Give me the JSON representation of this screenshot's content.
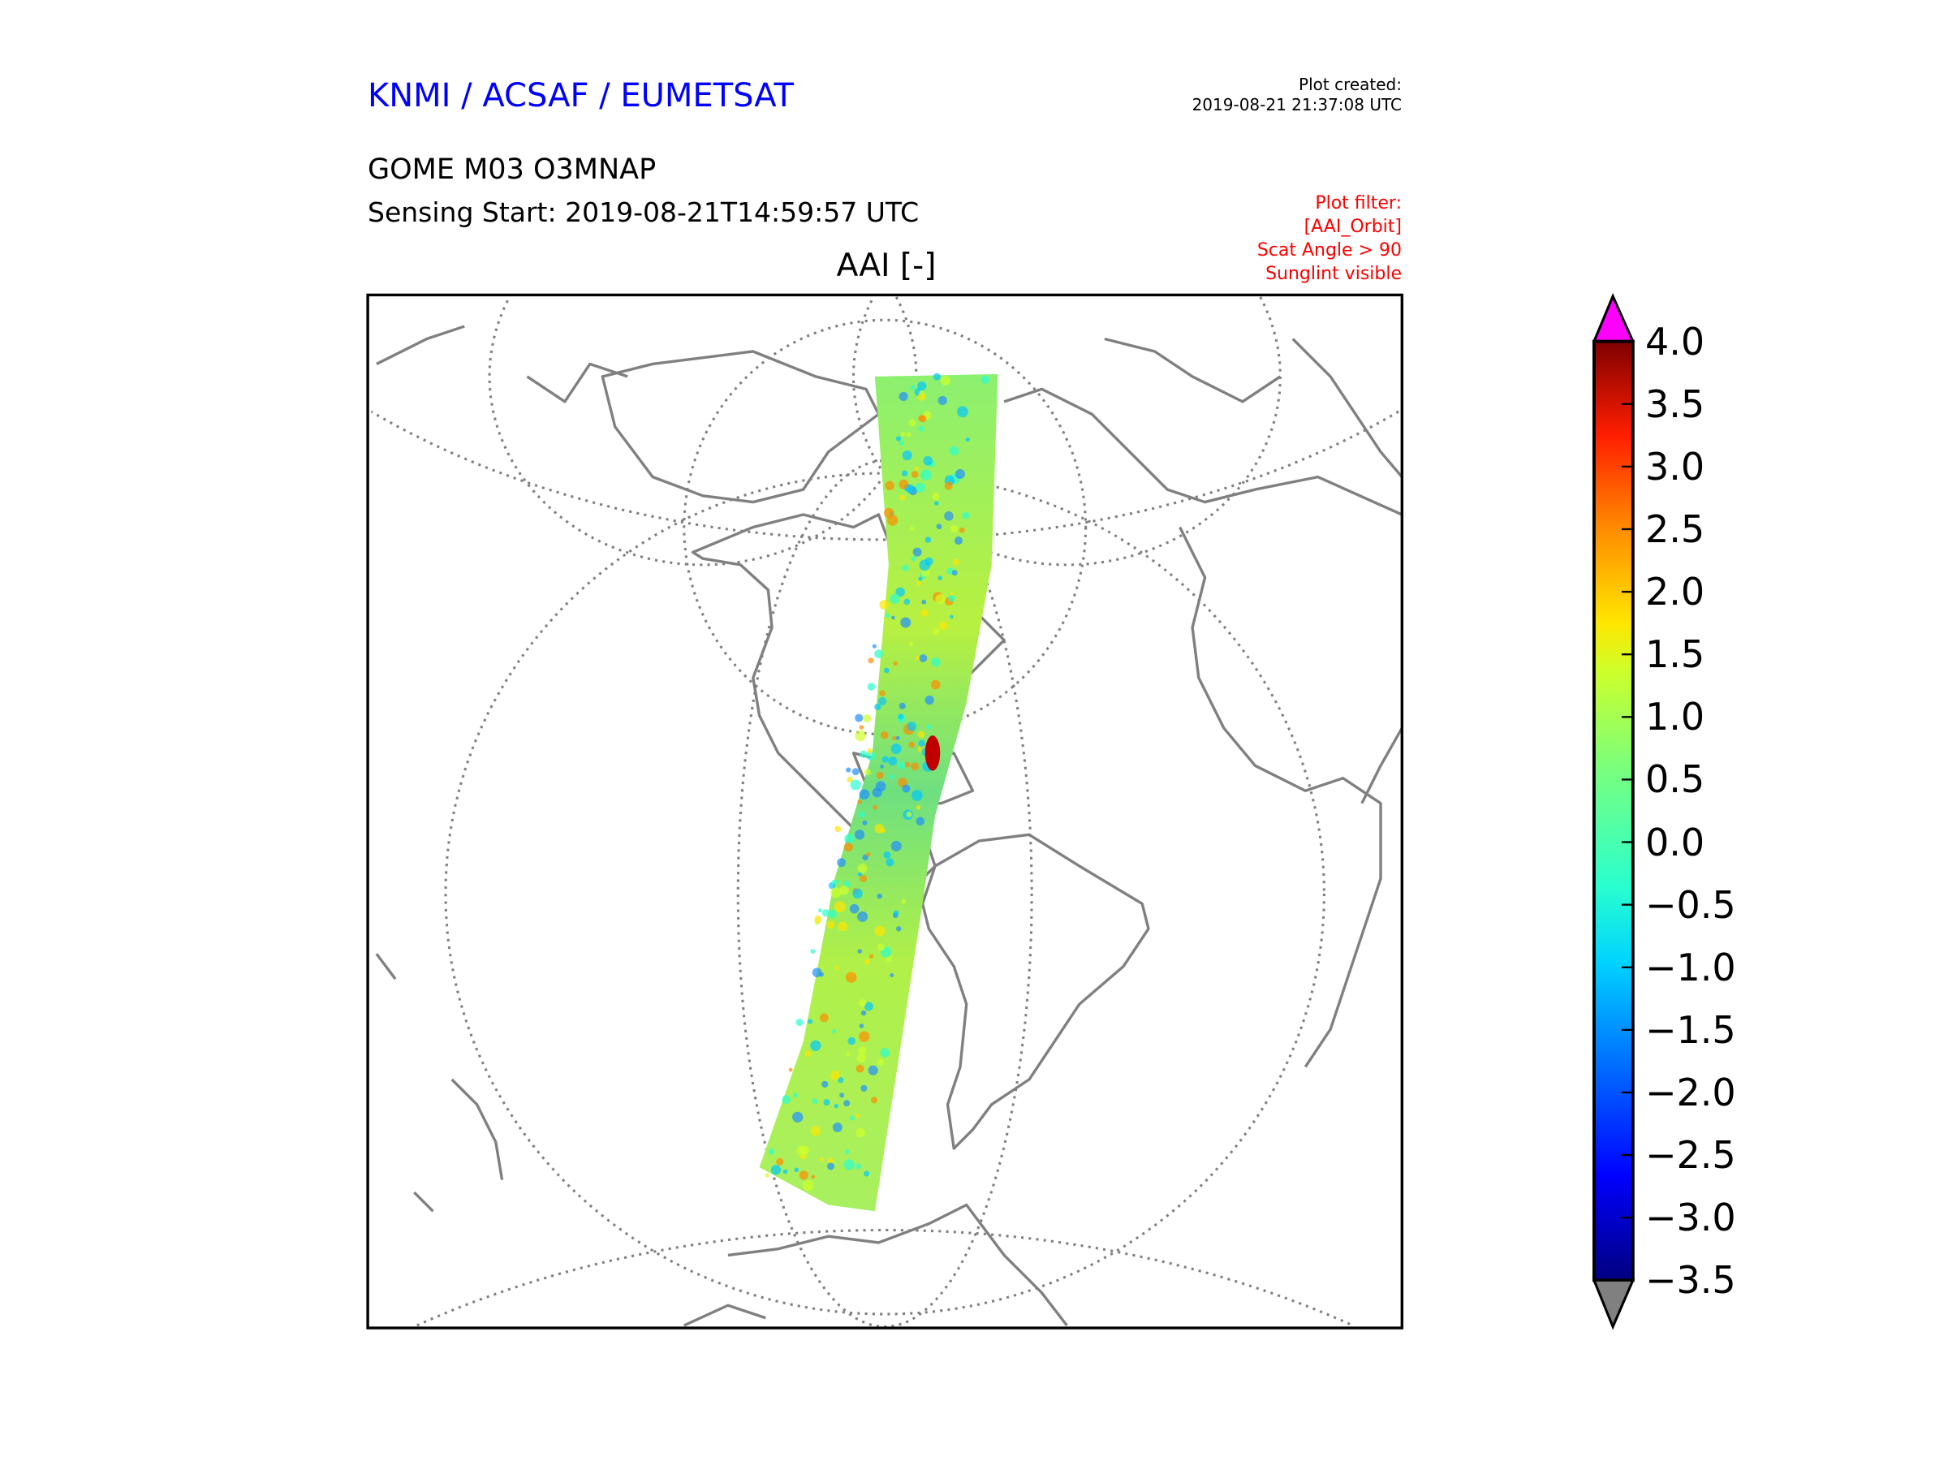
{
  "header": {
    "organization": "KNMI / ACSAF / EUMETSAT",
    "created_label": "Plot created:",
    "created_value": "2019-08-21 21:37:08 UTC",
    "product": "GOME M03 O3MNAP",
    "sensing_start": "Sensing Start: 2019-08-21T14:59:57 UTC",
    "plot_title": "AAI [-]",
    "filter": [
      "Plot filter:",
      "[AAI_Orbit]",
      "Scat Angle > 90",
      "Sunglint visible"
    ]
  },
  "colorbar": {
    "min": -3.5,
    "max": 4.0,
    "ticks": [
      "4.0",
      "3.5",
      "3.0",
      "2.5",
      "2.0",
      "1.5",
      "1.0",
      "0.5",
      "0.0",
      "−0.5",
      "−1.0",
      "−1.5",
      "−2.0",
      "−2.5",
      "−3.0",
      "−3.5"
    ],
    "over_color": "#ff00ff",
    "under_color": "#808080"
  }
}
